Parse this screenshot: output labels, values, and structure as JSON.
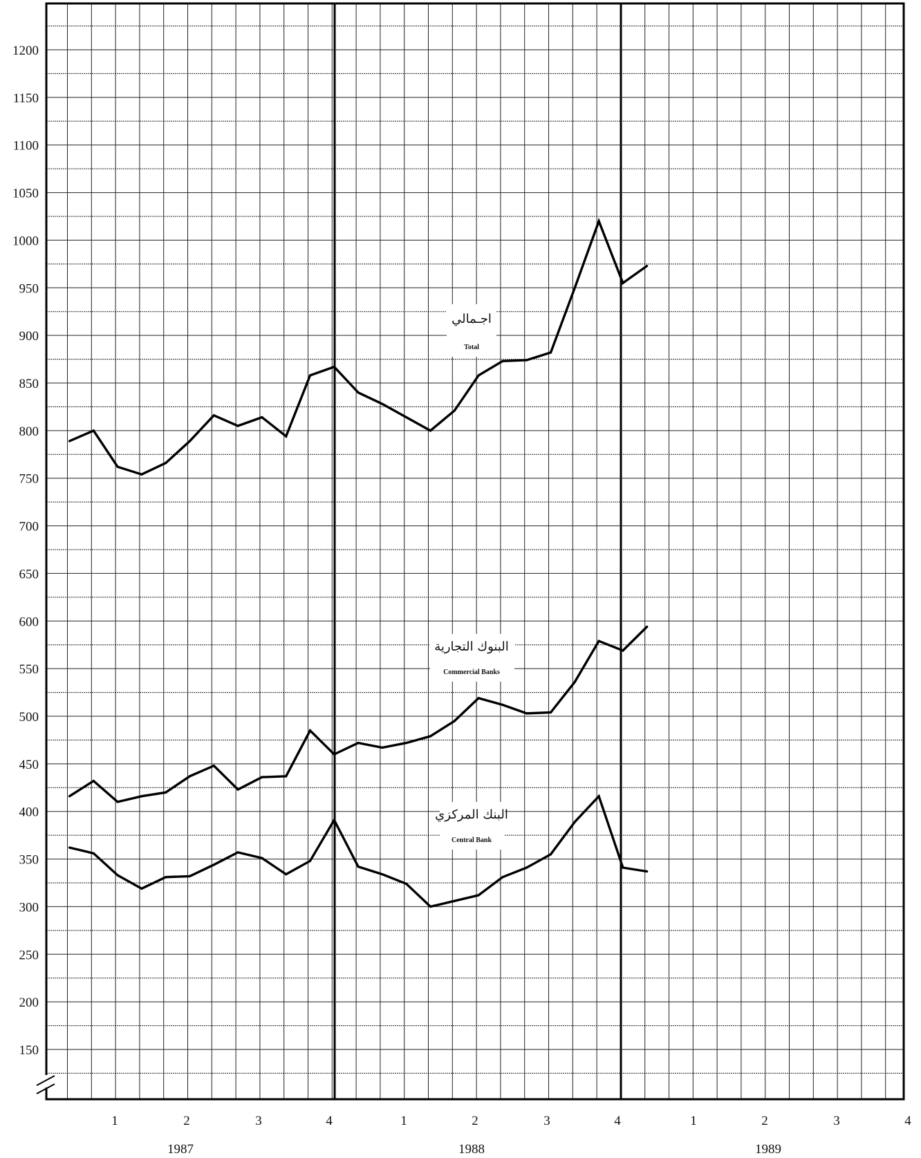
{
  "chart_data": {
    "type": "line",
    "title": "",
    "xlabel": "",
    "ylabel": "",
    "ylim": [
      100,
      1250
    ],
    "y_ticks": [
      150,
      200,
      250,
      300,
      350,
      400,
      450,
      500,
      550,
      600,
      650,
      700,
      750,
      800,
      850,
      900,
      950,
      1000,
      1050,
      1100,
      1150,
      1200
    ],
    "grid": true,
    "axis_break": true,
    "quarter_labels": [
      "1",
      "2",
      "3",
      "4",
      "1",
      "2",
      "3",
      "4",
      "1",
      "2",
      "3",
      "4"
    ],
    "years": [
      "1987",
      "1988",
      "1989"
    ],
    "series": [
      {
        "name": "Total",
        "name_ar": "اجـمالي",
        "values": [
          789,
          800,
          762,
          754,
          766,
          789,
          816,
          805,
          814,
          794,
          858,
          867,
          840,
          828,
          814,
          800,
          821,
          858,
          873,
          874,
          882,
          950,
          1020,
          955,
          973
        ]
      },
      {
        "name": "Commercial Banks",
        "name_ar": "البنوك التجارية",
        "values": [
          416,
          432,
          410,
          416,
          420,
          437,
          448,
          423,
          436,
          437,
          485,
          460,
          472,
          467,
          472,
          479,
          495,
          519,
          512,
          503,
          504,
          536,
          579,
          569,
          594
        ]
      },
      {
        "name": "Central Bank",
        "name_ar": "البنك المركزي",
        "values": [
          362,
          356,
          333,
          319,
          331,
          332,
          344,
          357,
          351,
          334,
          348,
          391,
          342,
          334,
          324,
          300,
          306,
          312,
          331,
          341,
          355,
          389,
          416,
          341,
          337
        ]
      }
    ]
  }
}
